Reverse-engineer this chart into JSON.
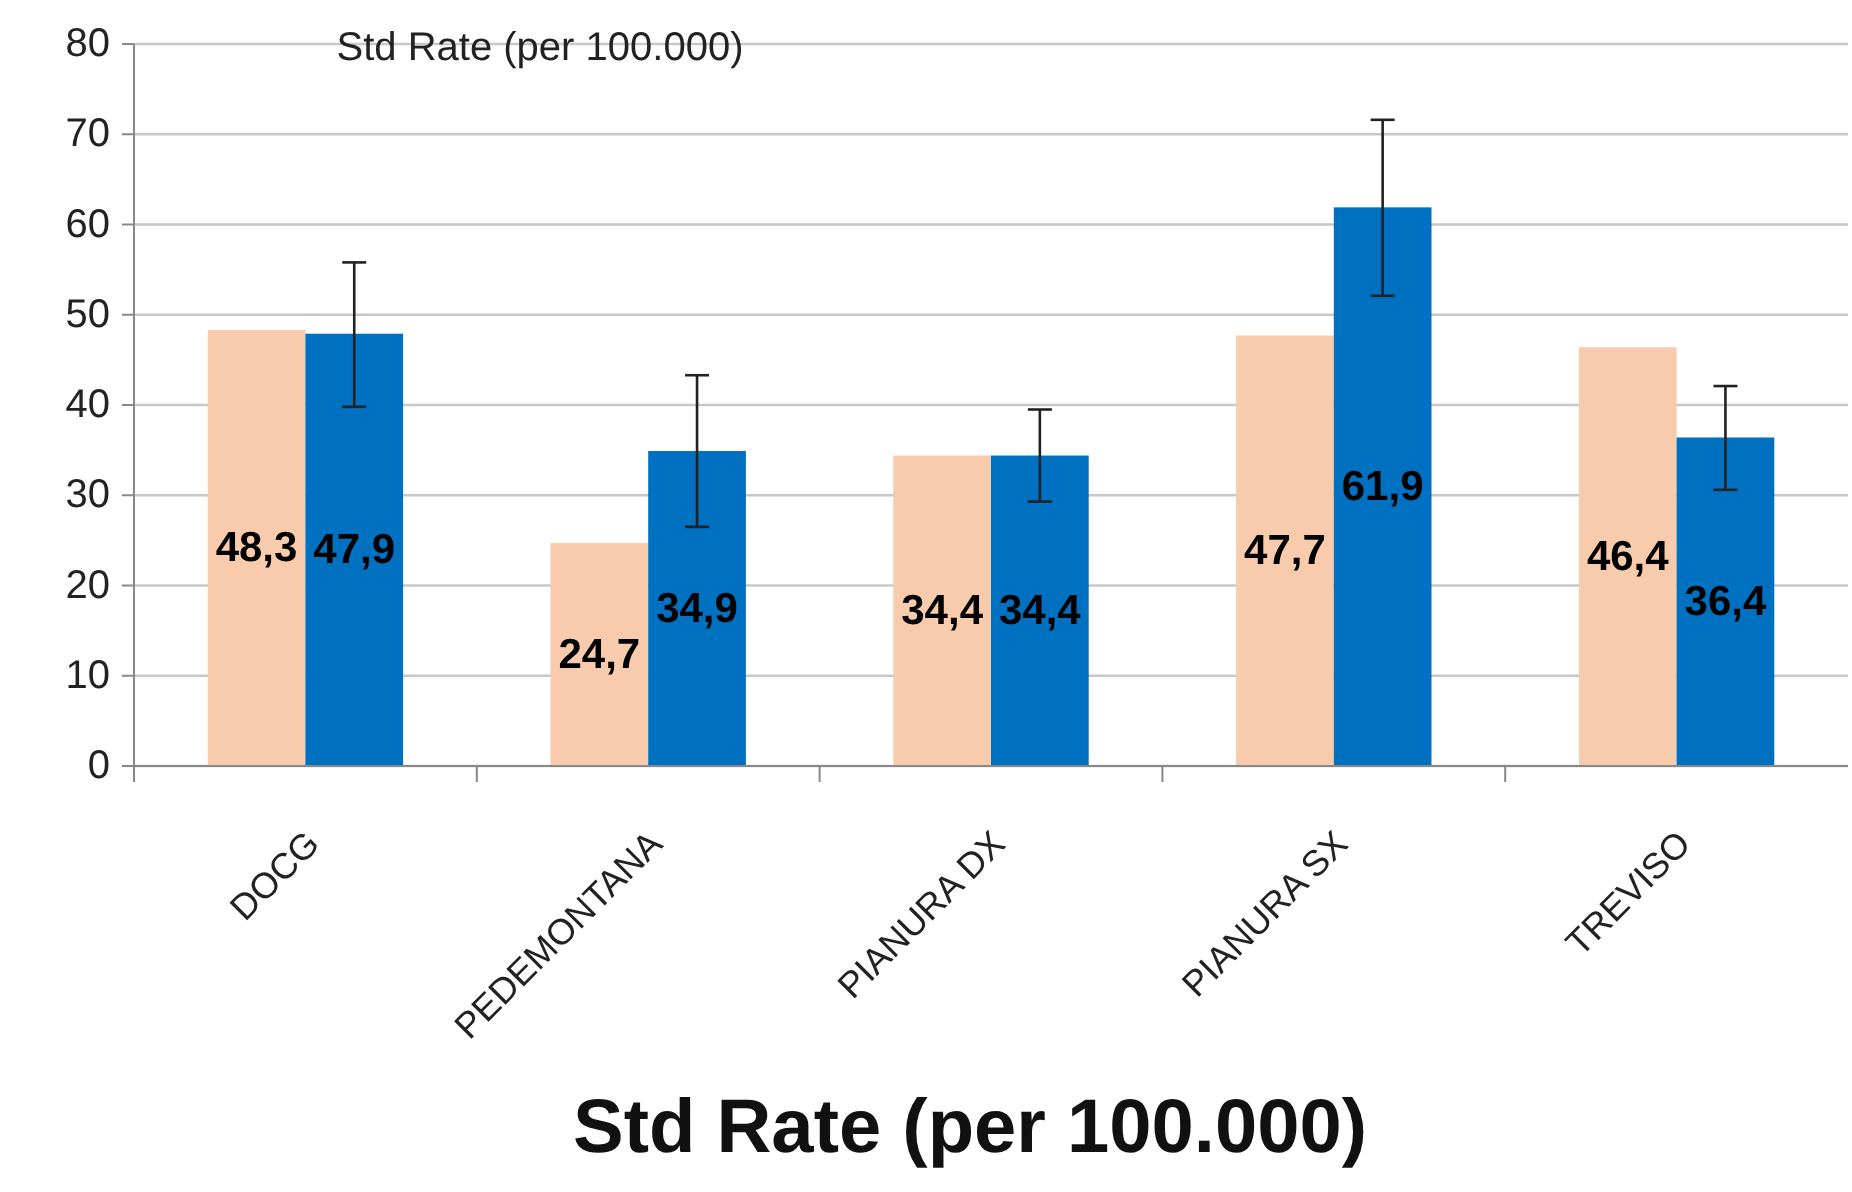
{
  "chart_data": {
    "type": "bar",
    "title": "Std Rate (per 100.000)",
    "subtitle": "Std Rate (per 100.000)",
    "categories": [
      "DOCG",
      "PEDEMONTANA",
      "PIANURA DX",
      "PIANURA SX",
      "TREVISO"
    ],
    "series": [
      {
        "color": "#f8cbad",
        "values": [
          48.3,
          24.7,
          34.4,
          47.7,
          46.4
        ],
        "value_labels": [
          "48,3",
          "24,7",
          "34,4",
          "47,7",
          "46,4"
        ]
      },
      {
        "color": "#0070c0",
        "values": [
          47.9,
          34.9,
          34.4,
          61.9,
          36.4
        ],
        "value_labels": [
          "47,9",
          "34,9",
          "34,4",
          "61,9",
          "36,4"
        ],
        "errors": [
          [
            39.8,
            55.8
          ],
          [
            26.5,
            43.3
          ],
          [
            29.3,
            39.5
          ],
          [
            52.1,
            71.6
          ],
          [
            30.6,
            42.1
          ]
        ]
      }
    ],
    "ylim": [
      0,
      80
    ],
    "yticks": [
      0,
      10,
      20,
      30,
      40,
      50,
      60,
      70,
      80
    ],
    "grid": "y"
  }
}
